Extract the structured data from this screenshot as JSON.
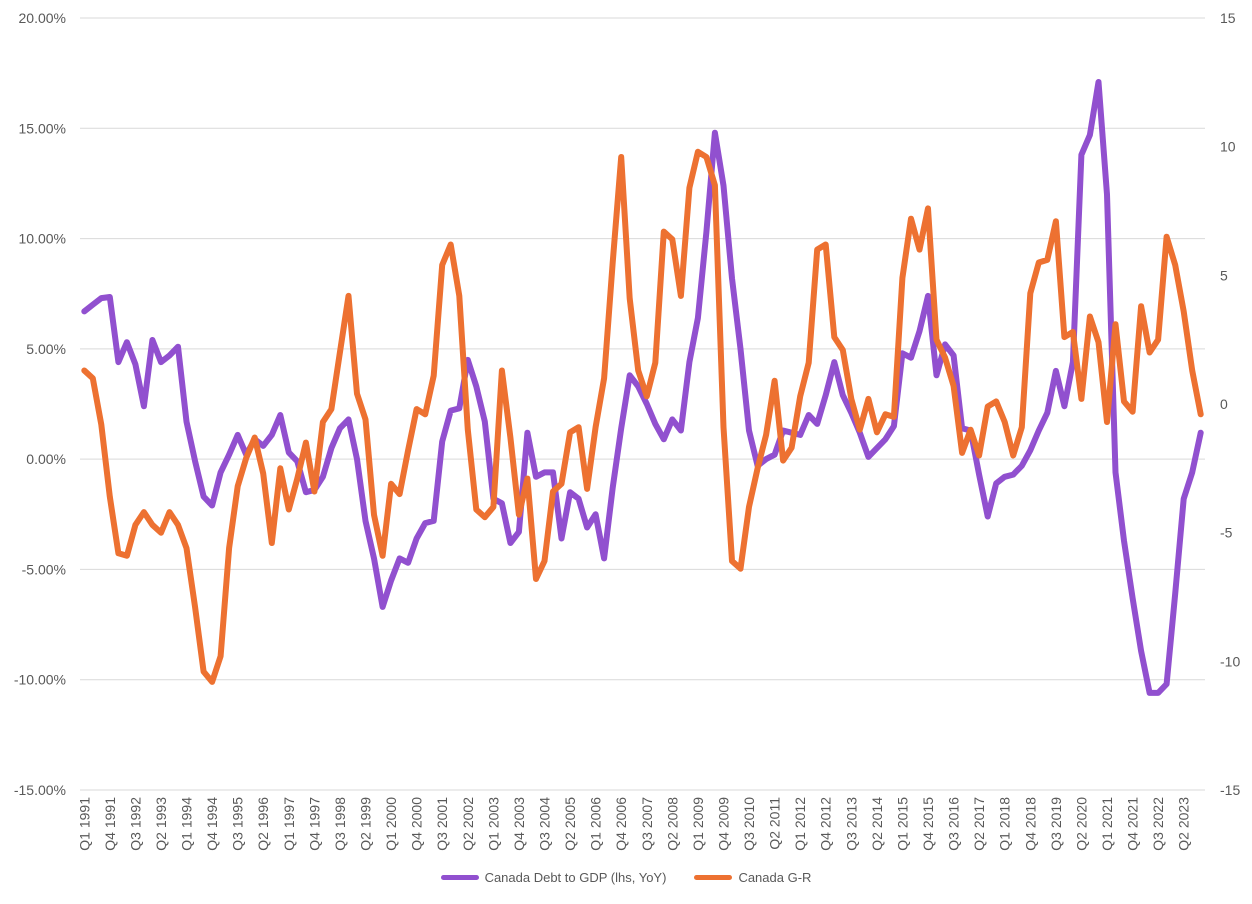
{
  "chart_data": {
    "type": "line",
    "title": "",
    "x": [
      "Q1 1991",
      "Q2 1991",
      "Q3 1991",
      "Q4 1991",
      "Q1 1992",
      "Q2 1992",
      "Q3 1992",
      "Q4 1992",
      "Q1 1993",
      "Q2 1993",
      "Q3 1993",
      "Q4 1993",
      "Q1 1994",
      "Q2 1994",
      "Q3 1994",
      "Q4 1994",
      "Q1 1995",
      "Q2 1995",
      "Q3 1995",
      "Q4 1995",
      "Q1 1996",
      "Q2 1996",
      "Q3 1996",
      "Q4 1996",
      "Q1 1997",
      "Q2 1997",
      "Q3 1997",
      "Q4 1997",
      "Q1 1998",
      "Q2 1998",
      "Q3 1998",
      "Q4 1998",
      "Q1 1999",
      "Q2 1999",
      "Q3 1999",
      "Q4 1999",
      "Q1 2000",
      "Q2 2000",
      "Q3 2000",
      "Q4 2000",
      "Q1 2001",
      "Q2 2001",
      "Q3 2001",
      "Q4 2001",
      "Q1 2002",
      "Q2 2002",
      "Q3 2002",
      "Q4 2002",
      "Q1 2003",
      "Q2 2003",
      "Q3 2003",
      "Q4 2003",
      "Q1 2004",
      "Q2 2004",
      "Q3 2004",
      "Q4 2004",
      "Q1 2005",
      "Q2 2005",
      "Q3 2005",
      "Q4 2005",
      "Q1 2006",
      "Q2 2006",
      "Q3 2006",
      "Q4 2006",
      "Q1 2007",
      "Q2 2007",
      "Q3 2007",
      "Q4 2007",
      "Q1 2008",
      "Q2 2008",
      "Q3 2008",
      "Q4 2008",
      "Q1 2009",
      "Q2 2009",
      "Q3 2009",
      "Q4 2009",
      "Q1 2010",
      "Q2 2010",
      "Q3 2010",
      "Q4 2010",
      "Q1 2011",
      "Q2 2011",
      "Q3 2011",
      "Q4 2011",
      "Q1 2012",
      "Q2 2012",
      "Q3 2012",
      "Q4 2012",
      "Q1 2013",
      "Q2 2013",
      "Q3 2013",
      "Q4 2013",
      "Q1 2014",
      "Q2 2014",
      "Q3 2014",
      "Q4 2014",
      "Q1 2015",
      "Q2 2015",
      "Q3 2015",
      "Q4 2015",
      "Q1 2016",
      "Q2 2016",
      "Q3 2016",
      "Q4 2016",
      "Q1 2017",
      "Q2 2017",
      "Q3 2017",
      "Q4 2017",
      "Q1 2018",
      "Q2 2018",
      "Q3 2018",
      "Q4 2018",
      "Q1 2019",
      "Q2 2019",
      "Q3 2019",
      "Q4 2019",
      "Q1 2020",
      "Q2 2020",
      "Q3 2020",
      "Q4 2020",
      "Q1 2021",
      "Q2 2021",
      "Q3 2021",
      "Q4 2021",
      "Q1 2022",
      "Q2 2022",
      "Q3 2022",
      "Q4 2022",
      "Q1 2023",
      "Q2 2023",
      "Q3 2023",
      "Q4 2023"
    ],
    "xticks": [
      "Q1 1991",
      "Q4 1991",
      "Q3 1992",
      "Q2 1993",
      "Q1 1994",
      "Q4 1994",
      "Q3 1995",
      "Q2 1996",
      "Q1 1997",
      "Q4 1997",
      "Q3 1998",
      "Q2 1999",
      "Q1 2000",
      "Q4 2000",
      "Q3 2001",
      "Q2 2002",
      "Q1 2003",
      "Q4 2003",
      "Q3 2004",
      "Q2 2005",
      "Q1 2006",
      "Q4 2006",
      "Q3 2007",
      "Q2 2008",
      "Q1 2009",
      "Q4 2009",
      "Q3 2010",
      "Q2 2011",
      "Q1 2012",
      "Q4 2012",
      "Q3 2013",
      "Q2 2014",
      "Q1 2015",
      "Q4 2015",
      "Q3 2016",
      "Q2 2017",
      "Q1 2018",
      "Q4 2018",
      "Q3 2019",
      "Q2 2020",
      "Q1 2021",
      "Q4 2021",
      "Q3 2022",
      "Q2 2023"
    ],
    "y_left": {
      "ylim": [
        -15,
        20
      ],
      "ticks": [
        20,
        15,
        10,
        5,
        0,
        -5,
        -10,
        -15
      ],
      "tick_labels": [
        "20.00%",
        "15.00%",
        "10.00%",
        "5.00%",
        "0.00%",
        "-5.00%",
        "-10.00%",
        "-15.00%"
      ]
    },
    "y_right": {
      "ylim": [
        -15,
        15
      ],
      "ticks": [
        15,
        10,
        5,
        0,
        -5,
        -10,
        -15
      ],
      "tick_labels": [
        "15",
        "10",
        "5",
        "0",
        "-5",
        "-10",
        "-15"
      ]
    },
    "grid": true,
    "legend_position": "bottom",
    "series": [
      {
        "name": "Canada Debt to GDP (lhs, YoY)",
        "axis": "left",
        "color": "#9150CF",
        "values": [
          6.7,
          7.0,
          7.3,
          7.35,
          4.4,
          5.3,
          4.3,
          2.4,
          5.4,
          4.4,
          4.7,
          5.1,
          1.7,
          -0.1,
          -1.7,
          -2.1,
          -0.6,
          0.2,
          1.1,
          0.2,
          0.9,
          0.6,
          1.1,
          2.0,
          0.3,
          -0.1,
          -1.5,
          -1.4,
          -0.8,
          0.5,
          1.4,
          1.8,
          0.0,
          -2.8,
          -4.5,
          -6.7,
          -5.5,
          -4.5,
          -4.7,
          -3.6,
          -2.9,
          -2.8,
          0.8,
          2.2,
          2.3,
          4.5,
          3.3,
          1.7,
          -1.8,
          -2.0,
          -3.8,
          -3.3,
          1.2,
          -0.8,
          -0.6,
          -0.6,
          -3.6,
          -1.5,
          -1.8,
          -3.1,
          -2.5,
          -4.5,
          -1.3,
          1.4,
          3.8,
          3.3,
          2.5,
          1.6,
          0.9,
          1.8,
          1.3,
          4.4,
          6.4,
          10.3,
          14.8,
          12.4,
          8.2,
          5.0,
          1.3,
          -0.3,
          0.0,
          0.2,
          1.3,
          1.2,
          1.1,
          2.0,
          1.6,
          2.9,
          4.4,
          2.9,
          2.1,
          1.2,
          0.1,
          0.5,
          0.9,
          1.5,
          4.8,
          4.6,
          5.8,
          7.4,
          3.8,
          5.2,
          4.7,
          1.4,
          1.3,
          -0.7,
          -2.6,
          -1.1,
          -0.8,
          -0.7,
          -0.3,
          0.4,
          1.3,
          2.1,
          4.0,
          2.4,
          4.4,
          13.8,
          14.7,
          17.1,
          12.0,
          -0.6,
          -3.7,
          -6.3,
          -8.7,
          -10.6,
          -10.6,
          -10.2,
          -6.1,
          -1.8,
          -0.6,
          1.2
        ]
      },
      {
        "name": "Canada G-R",
        "axis": "right",
        "color": "#ED7131",
        "values": [
          1.3,
          1.0,
          -0.8,
          -3.6,
          -5.8,
          -5.9,
          -4.7,
          -4.2,
          -4.7,
          -5.0,
          -4.2,
          -4.7,
          -5.6,
          -7.9,
          -10.4,
          -10.8,
          -9.8,
          -5.6,
          -3.2,
          -2.1,
          -1.3,
          -2.7,
          -5.4,
          -2.5,
          -4.1,
          -2.9,
          -1.5,
          -3.4,
          -0.7,
          -0.2,
          2.0,
          4.2,
          0.4,
          -0.6,
          -4.3,
          -5.9,
          -3.1,
          -3.5,
          -1.8,
          -0.2,
          -0.4,
          1.1,
          5.4,
          6.2,
          4.2,
          -1.0,
          -4.1,
          -4.4,
          -4.0,
          1.3,
          -1.3,
          -4.3,
          -2.9,
          -6.8,
          -6.1,
          -3.4,
          -3.1,
          -1.1,
          -0.9,
          -3.3,
          -0.9,
          1.0,
          5.5,
          9.6,
          4.1,
          1.3,
          0.3,
          1.6,
          6.7,
          6.4,
          4.2,
          8.4,
          9.8,
          9.6,
          8.5,
          -0.9,
          -6.1,
          -6.4,
          -4.0,
          -2.5,
          -1.2,
          0.9,
          -2.2,
          -1.7,
          0.3,
          1.6,
          6.0,
          6.2,
          2.6,
          2.1,
          0.2,
          -1.0,
          0.2,
          -1.1,
          -0.4,
          -0.5,
          4.9,
          7.2,
          6.0,
          7.6,
          2.5,
          1.8,
          0.7,
          -1.9,
          -1.0,
          -2.0,
          -0.1,
          0.1,
          -0.7,
          -2.0,
          -0.9,
          4.3,
          5.5,
          5.6,
          7.1,
          2.6,
          2.8,
          0.2,
          3.4,
          2.4,
          -0.7,
          3.1,
          0.1,
          -0.3,
          3.8,
          2.0,
          2.5,
          6.5,
          5.4,
          3.6,
          1.3,
          -0.4
        ]
      }
    ]
  }
}
